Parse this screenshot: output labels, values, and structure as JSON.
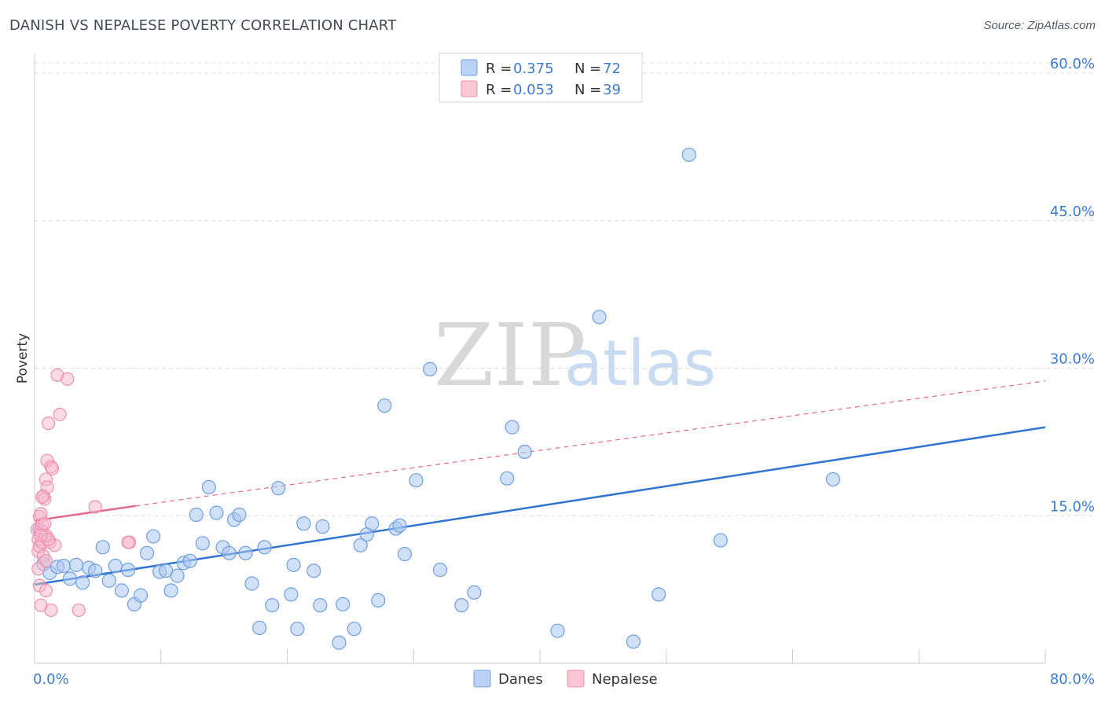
{
  "header": {
    "title": "DANISH VS NEPALESE POVERTY CORRELATION CHART",
    "source": "Source: ZipAtlas.com"
  },
  "watermark": {
    "zip": "ZIP",
    "atlas": "atlas"
  },
  "colors": {
    "danes_fill": "#a9c7f0",
    "danes_stroke": "#6f9fe0",
    "danes_line": "#2f74d0",
    "nepalese_fill": "#f6b8cb",
    "nepalese_stroke": "#ec8fae",
    "nepalese_line": "#e6688f",
    "grid": "#dddddd",
    "tick_text": "#3d7bd1"
  },
  "legend": {
    "rows": [
      {
        "r_label": "R =",
        "r_value": "0.375",
        "n_label": "N =",
        "n_value": "72"
      },
      {
        "r_label": "R =",
        "r_value": "0.053",
        "n_label": "N =",
        "n_value": "39"
      }
    ]
  },
  "bottom_legend": {
    "danes": "Danes",
    "nepalese": "Nepalese"
  },
  "chart_data": {
    "type": "scatter",
    "title": "DANISH VS NEPALESE POVERTY CORRELATION CHART",
    "xlabel": "",
    "ylabel": "Poverty",
    "xlim": [
      0,
      80
    ],
    "ylim": [
      0,
      62
    ],
    "x_tick_labels": [
      "0.0%",
      "80.0%"
    ],
    "y_ticks": [
      15,
      30,
      45,
      60
    ],
    "y_tick_labels": [
      "15.0%",
      "30.0%",
      "45.0%",
      "60.0%"
    ],
    "grid": true,
    "legend_position": "top-center",
    "series": [
      {
        "name": "Danes",
        "r": 0.375,
        "n": 72,
        "trend": {
          "x0": 0,
          "y0": 8.0,
          "x1": 80,
          "y1": 24.0
        },
        "points": [
          [
            0.7,
            10.1
          ],
          [
            1.2,
            9.2
          ],
          [
            1.8,
            9.8
          ],
          [
            2.3,
            9.9
          ],
          [
            2.8,
            8.6
          ],
          [
            3.3,
            10.0
          ],
          [
            3.8,
            8.2
          ],
          [
            4.3,
            9.7
          ],
          [
            4.8,
            9.4
          ],
          [
            5.4,
            11.8
          ],
          [
            5.9,
            8.4
          ],
          [
            6.4,
            9.9
          ],
          [
            6.9,
            7.4
          ],
          [
            7.4,
            9.5
          ],
          [
            7.9,
            6.0
          ],
          [
            8.4,
            6.9
          ],
          [
            8.9,
            11.2
          ],
          [
            9.4,
            12.9
          ],
          [
            9.9,
            9.3
          ],
          [
            10.4,
            9.4
          ],
          [
            10.8,
            7.4
          ],
          [
            11.3,
            8.9
          ],
          [
            11.8,
            10.2
          ],
          [
            12.3,
            10.4
          ],
          [
            12.8,
            15.1
          ],
          [
            13.3,
            12.2
          ],
          [
            13.8,
            17.9
          ],
          [
            14.4,
            15.3
          ],
          [
            14.9,
            11.8
          ],
          [
            15.4,
            11.2
          ],
          [
            15.8,
            14.6
          ],
          [
            16.2,
            15.1
          ],
          [
            16.7,
            11.2
          ],
          [
            17.2,
            8.1
          ],
          [
            17.8,
            3.6
          ],
          [
            18.2,
            11.8
          ],
          [
            18.8,
            5.9
          ],
          [
            19.3,
            17.8
          ],
          [
            20.3,
            7.0
          ],
          [
            20.5,
            10.0
          ],
          [
            20.8,
            3.5
          ],
          [
            21.3,
            14.2
          ],
          [
            22.1,
            9.4
          ],
          [
            22.6,
            5.9
          ],
          [
            22.8,
            13.9
          ],
          [
            24.1,
            2.1
          ],
          [
            24.4,
            6.0
          ],
          [
            25.3,
            3.5
          ],
          [
            25.8,
            12.0
          ],
          [
            26.3,
            13.1
          ],
          [
            26.7,
            14.2
          ],
          [
            27.2,
            6.4
          ],
          [
            27.7,
            26.2
          ],
          [
            28.6,
            13.7
          ],
          [
            28.9,
            14.0
          ],
          [
            29.3,
            11.1
          ],
          [
            30.2,
            18.6
          ],
          [
            31.3,
            29.9
          ],
          [
            32.1,
            9.5
          ],
          [
            33.8,
            5.9
          ],
          [
            34.8,
            7.2
          ],
          [
            37.4,
            18.8
          ],
          [
            37.8,
            24.0
          ],
          [
            38.8,
            21.5
          ],
          [
            41.4,
            3.3
          ],
          [
            44.7,
            35.2
          ],
          [
            47.4,
            2.2
          ],
          [
            49.4,
            7.0
          ],
          [
            51.8,
            51.7
          ],
          [
            54.3,
            12.5
          ],
          [
            63.2,
            18.7
          ],
          [
            0.4,
            13.6
          ]
        ]
      },
      {
        "name": "Nepalese",
        "r": 0.053,
        "n": 39,
        "trend_solid": {
          "x0": 0,
          "y0": 14.5,
          "x1": 8.0,
          "y1": 16.0
        },
        "trend_dashed": {
          "x0": 8.0,
          "y0": 16.0,
          "x1": 80,
          "y1": 28.7
        },
        "points": [
          [
            0.2,
            13.6
          ],
          [
            0.3,
            12.6
          ],
          [
            0.3,
            11.4
          ],
          [
            0.4,
            14.9
          ],
          [
            0.4,
            11.9
          ],
          [
            0.5,
            13.4
          ],
          [
            0.5,
            15.2
          ],
          [
            0.6,
            14.1
          ],
          [
            0.6,
            12.3
          ],
          [
            0.7,
            17.0
          ],
          [
            0.7,
            10.9
          ],
          [
            0.8,
            16.7
          ],
          [
            0.8,
            12.9
          ],
          [
            0.9,
            18.7
          ],
          [
            0.9,
            10.4
          ],
          [
            1.0,
            20.6
          ],
          [
            1.0,
            17.9
          ],
          [
            1.1,
            24.4
          ],
          [
            1.2,
            12.3
          ],
          [
            1.3,
            20.0
          ],
          [
            1.4,
            19.8
          ],
          [
            1.6,
            12.0
          ],
          [
            1.8,
            29.3
          ],
          [
            2.0,
            25.3
          ],
          [
            2.6,
            28.9
          ],
          [
            4.8,
            15.9
          ],
          [
            7.5,
            12.3
          ],
          [
            0.4,
            7.9
          ],
          [
            0.5,
            5.9
          ],
          [
            0.9,
            7.4
          ],
          [
            1.3,
            5.4
          ],
          [
            3.5,
            5.4
          ],
          [
            0.6,
            16.9
          ],
          [
            0.8,
            14.2
          ],
          [
            0.9,
            13.0
          ],
          [
            1.1,
            12.6
          ],
          [
            7.4,
            12.3
          ],
          [
            0.3,
            9.6
          ],
          [
            0.5,
            13.0
          ]
        ]
      }
    ]
  }
}
